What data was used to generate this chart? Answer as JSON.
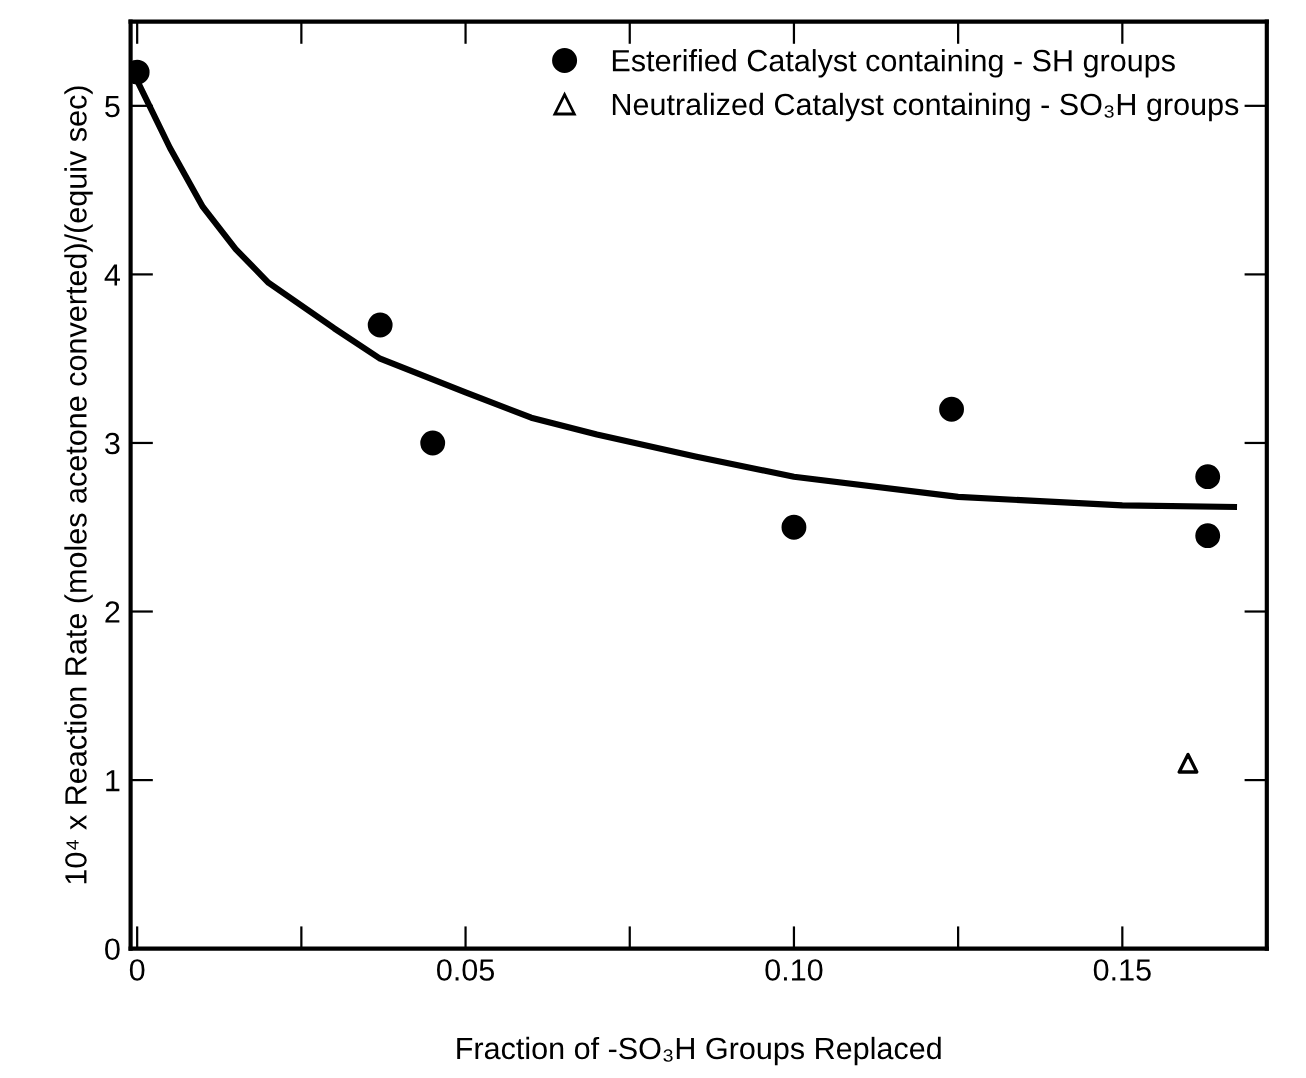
{
  "chart_data": {
    "type": "scatter",
    "xlabel": "Fraction of -SO₃H Groups Replaced",
    "ylabel": "10⁴ x Reaction Rate (moles acetone converted)/(equiv sec)",
    "xlim": [
      -0.001,
      0.172
    ],
    "ylim": [
      0,
      5.5
    ],
    "xticks": [
      {
        "value": 0,
        "label": "0"
      },
      {
        "value": 0.025,
        "label": null
      },
      {
        "value": 0.05,
        "label": "0.05"
      },
      {
        "value": 0.075,
        "label": null
      },
      {
        "value": 0.1,
        "label": "0.10"
      },
      {
        "value": 0.125,
        "label": null
      },
      {
        "value": 0.15,
        "label": "0.15"
      }
    ],
    "yticks": [
      0,
      1,
      2,
      3,
      4,
      5
    ],
    "legend": "top right",
    "grid": false,
    "series": [
      {
        "name": "Esterified Catalyst containing - SH groups",
        "marker": "circle",
        "color": "#000000",
        "x": [
          0,
          0.037,
          0.045,
          0.1,
          0.124,
          0.163,
          0.163
        ],
        "values": [
          5.2,
          3.7,
          3.0,
          2.5,
          3.2,
          2.8,
          2.45
        ]
      },
      {
        "name": "Neutralized Catalyst containing - SO₃H groups",
        "marker": "triangle",
        "color": "#000000",
        "x": [
          0.16
        ],
        "values": [
          1.1
        ]
      },
      {
        "type": "line",
        "marker": "none",
        "color": "#000000",
        "x": [
          0,
          0.005,
          0.01,
          0.015,
          0.02,
          0.03,
          0.037,
          0.05,
          0.06,
          0.07,
          0.085,
          0.1,
          0.125,
          0.15,
          0.167
        ],
        "values": [
          5.15,
          4.75,
          4.4,
          4.15,
          3.95,
          3.68,
          3.5,
          3.3,
          3.15,
          3.05,
          2.92,
          2.8,
          2.68,
          2.63,
          2.62
        ]
      }
    ]
  }
}
